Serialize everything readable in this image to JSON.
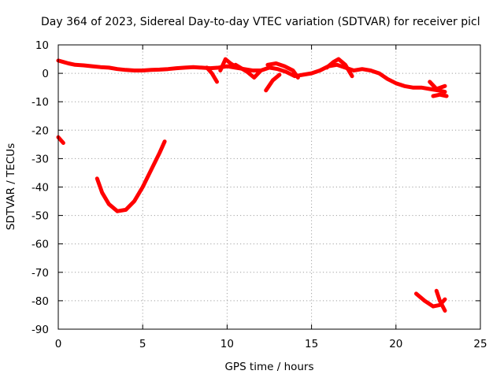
{
  "chart_data": {
    "type": "line",
    "title": "Day 364 of 2023, Sidereal Day-to-day VTEC variation (SDTVAR) for receiver picl",
    "xlabel": "GPS time / hours",
    "ylabel": "SDTVAR / TECUs",
    "xlim": [
      0,
      25
    ],
    "ylim": [
      -90,
      10
    ],
    "xticks": [
      0,
      5,
      10,
      15,
      20,
      25
    ],
    "yticks": [
      10,
      0,
      -10,
      -20,
      -30,
      -40,
      -50,
      -60,
      -70,
      -80,
      -90
    ],
    "grid": true,
    "color": "#ff0000",
    "series": [
      {
        "name": "main-trace",
        "x": [
          0.0,
          0.3,
          0.6,
          1.0,
          1.5,
          2.0,
          2.5,
          3.0,
          3.5,
          4.0,
          4.5,
          5.0,
          5.5,
          6.0,
          6.5,
          7.0,
          7.5,
          8.0,
          8.5,
          9.0,
          9.5,
          10.0,
          10.5,
          11.0,
          11.5,
          12.0,
          12.5,
          13.0,
          13.5,
          14.0,
          14.5,
          15.0,
          15.5,
          16.0,
          16.5,
          17.0,
          17.5,
          18.0,
          18.5,
          19.0,
          19.5,
          20.0,
          20.5,
          21.0,
          21.5,
          22.0,
          22.5,
          22.9
        ],
        "y": [
          4.5,
          4.0,
          3.5,
          3.0,
          2.8,
          2.5,
          2.2,
          2.0,
          1.5,
          1.2,
          1.0,
          1.0,
          1.2,
          1.3,
          1.5,
          1.8,
          2.0,
          2.2,
          2.0,
          1.8,
          2.0,
          2.5,
          2.0,
          1.5,
          1.0,
          1.0,
          2.0,
          1.5,
          0.5,
          -1.0,
          -0.5,
          0.0,
          1.0,
          2.5,
          3.0,
          2.0,
          1.0,
          1.5,
          1.0,
          0.0,
          -2.0,
          -3.5,
          -4.5,
          -5.0,
          -5.0,
          -5.5,
          -6.0,
          -6.5
        ]
      },
      {
        "name": "spike-9",
        "x": [
          8.8,
          9.1,
          9.4
        ],
        "y": [
          2.0,
          0.0,
          -3.0
        ]
      },
      {
        "name": "bump-10",
        "x": [
          9.6,
          9.9,
          10.2,
          10.6
        ],
        "y": [
          1.0,
          5.0,
          3.5,
          2.0
        ]
      },
      {
        "name": "loop-11",
        "x": [
          10.5,
          11.2,
          11.6,
          12.0
        ],
        "y": [
          3.0,
          0.5,
          -1.5,
          1.0
        ]
      },
      {
        "name": "dip-12",
        "x": [
          12.3,
          12.7,
          13.1
        ],
        "y": [
          -6.0,
          -2.5,
          -0.5
        ]
      },
      {
        "name": "hump-13",
        "x": [
          12.4,
          12.9,
          13.4,
          13.9,
          14.2
        ],
        "y": [
          3.0,
          3.5,
          2.5,
          1.0,
          -1.5
        ]
      },
      {
        "name": "bump-16",
        "x": [
          15.9,
          16.3,
          16.6,
          17.0,
          17.4
        ],
        "y": [
          2.0,
          4.0,
          5.0,
          3.0,
          -1.0
        ]
      },
      {
        "name": "fork-22",
        "x": [
          22.0,
          22.4,
          22.9
        ],
        "y": [
          -3.0,
          -5.5,
          -4.5
        ]
      },
      {
        "name": "fork-22b",
        "x": [
          22.2,
          22.6,
          23.0
        ],
        "y": [
          -8.0,
          -7.5,
          -8.0
        ]
      },
      {
        "name": "start-blip",
        "x": [
          0.0,
          0.15,
          0.3
        ],
        "y": [
          -22.5,
          -23.5,
          -24.5
        ]
      },
      {
        "name": "parabola",
        "x": [
          2.3,
          2.6,
          3.0,
          3.5,
          4.0,
          4.5,
          5.0,
          5.5,
          6.0,
          6.3
        ],
        "y": [
          -37.0,
          -42.0,
          -46.0,
          -48.5,
          -48.0,
          -45.0,
          -40.0,
          -34.0,
          -28.0,
          -24.0
        ]
      },
      {
        "name": "late-arc",
        "x": [
          21.2,
          21.7,
          22.2,
          22.6,
          22.9
        ],
        "y": [
          -77.5,
          -80.0,
          -82.0,
          -81.5,
          -79.5
        ]
      },
      {
        "name": "late-spike",
        "x": [
          22.4,
          22.6,
          22.9
        ],
        "y": [
          -76.5,
          -80.0,
          -83.5
        ]
      }
    ]
  }
}
